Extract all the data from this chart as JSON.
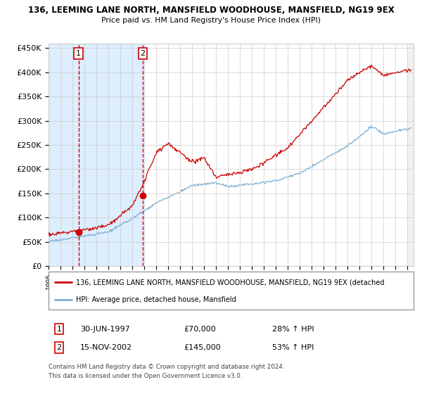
{
  "title1": "136, LEEMING LANE NORTH, MANSFIELD WOODHOUSE, MANSFIELD, NG19 9EX",
  "title2": "Price paid vs. HM Land Registry's House Price Index (HPI)",
  "ylim": [
    0,
    460000
  ],
  "yticks": [
    0,
    50000,
    100000,
    150000,
    200000,
    250000,
    300000,
    350000,
    400000,
    450000
  ],
  "ytick_labels": [
    "£0",
    "£50K",
    "£100K",
    "£150K",
    "£200K",
    "£250K",
    "£300K",
    "£350K",
    "£400K",
    "£450K"
  ],
  "xlim_start": 1995.0,
  "xlim_end": 2025.5,
  "purchase1_x": 1997.5,
  "purchase1_y": 70000,
  "purchase2_x": 2002.88,
  "purchase2_y": 145000,
  "legend_line1": "136, LEEMING LANE NORTH, MANSFIELD WOODHOUSE, MANSFIELD, NG19 9EX (detached",
  "legend_line2": "HPI: Average price, detached house, Mansfield",
  "annotation1_date": "30-JUN-1997",
  "annotation1_price": "£70,000",
  "annotation1_hpi": "28% ↑ HPI",
  "annotation2_date": "15-NOV-2002",
  "annotation2_price": "£145,000",
  "annotation2_hpi": "53% ↑ HPI",
  "footnote1": "Contains HM Land Registry data © Crown copyright and database right 2024.",
  "footnote2": "This data is licensed under the Open Government Licence v3.0.",
  "hpi_color": "#7bafd4",
  "price_color": "#cc0000",
  "marker_color": "#cc0000",
  "shade_color": "#ddeeff",
  "grid_color": "#cccccc",
  "background_color": "#ffffff"
}
